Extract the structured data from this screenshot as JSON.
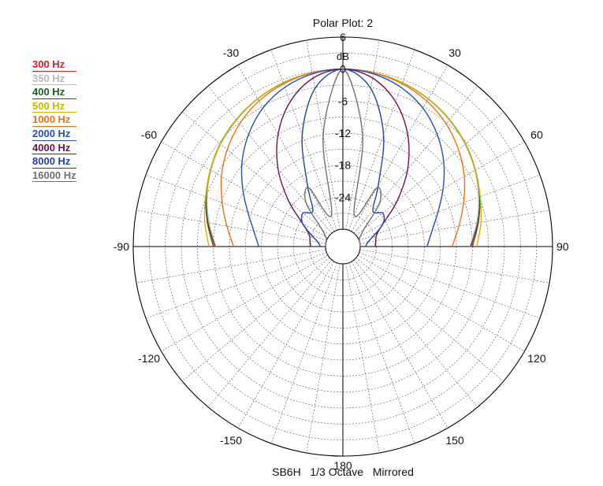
{
  "chart_data": {
    "type": "polar",
    "title": "Polar Plot: 2",
    "footer": "SB6H   1/3 Octave   Mirrored",
    "radial_unit": "dB",
    "radial_range": [
      -30,
      6
    ],
    "radial_ticks": [
      {
        "value": 6,
        "label": "6"
      },
      {
        "value": 0,
        "label": "0"
      },
      {
        "value": -6,
        "label": "-6"
      },
      {
        "value": -12,
        "label": "-12"
      },
      {
        "value": -18,
        "label": "-18"
      },
      {
        "value": -24,
        "label": "-24"
      }
    ],
    "angle_ticks": [
      {
        "value": -30,
        "label": "-30"
      },
      {
        "value": 30,
        "label": "30"
      },
      {
        "value": -60,
        "label": "-60"
      },
      {
        "value": 60,
        "label": "60"
      },
      {
        "value": -90,
        "label": "-90"
      },
      {
        "value": 90,
        "label": "90"
      },
      {
        "value": -120,
        "label": "-120"
      },
      {
        "value": 120,
        "label": "120"
      },
      {
        "value": -150,
        "label": "-150"
      },
      {
        "value": 150,
        "label": "150"
      },
      {
        "value": 180,
        "label": "180"
      }
    ],
    "grid": true,
    "legend_position": "top-left",
    "mirrored": true,
    "angles": [
      0,
      10,
      20,
      30,
      40,
      50,
      60,
      70,
      80,
      90
    ],
    "series": [
      {
        "name": "300 Hz",
        "color": "#d42020",
        "values": [
          0,
          -0.2,
          -0.6,
          -1.3,
          -2.2,
          -3.3,
          -4.6,
          -6.0,
          -7.5,
          -9.0
        ]
      },
      {
        "name": "350 Hz",
        "color": "#b8b8b8",
        "values": [
          0,
          -0.2,
          -0.6,
          -1.3,
          -2.3,
          -3.4,
          -4.7,
          -6.2,
          -7.8,
          -9.5
        ]
      },
      {
        "name": "400 Hz",
        "color": "#1e5e1e",
        "values": [
          0,
          -0.2,
          -0.6,
          -1.3,
          -2.2,
          -3.3,
          -4.6,
          -6.0,
          -7.6,
          -9.3
        ]
      },
      {
        "name": "500 Hz",
        "color": "#c8b800",
        "values": [
          0,
          -0.2,
          -0.6,
          -1.3,
          -2.2,
          -3.3,
          -4.6,
          -5.9,
          -7.0,
          -8.2
        ]
      },
      {
        "name": "1000 Hz",
        "color": "#f07010",
        "values": [
          0,
          -0.2,
          -0.8,
          -1.8,
          -3.2,
          -5.0,
          -7.0,
          -9.2,
          -11.2,
          -12.8
        ]
      },
      {
        "name": "2000 Hz",
        "color": "#2050c0",
        "values": [
          0,
          -0.4,
          -1.5,
          -3.3,
          -5.8,
          -8.6,
          -11.6,
          -14.3,
          -16.3,
          -17.5
        ]
      },
      {
        "name": "4000 Hz",
        "color": "#701050",
        "values": [
          0,
          -1.2,
          -4.4,
          -9.0,
          -14.4,
          -20.0,
          -24.5,
          -26.5,
          -27.0,
          -27.2
        ]
      },
      {
        "name": "8000 Hz",
        "color": "#2040b0",
        "values": [
          0,
          -3.2,
          -11.0,
          -20.0,
          -24.5,
          -23.5,
          -24.5,
          -27.0,
          -28.5,
          -29.0
        ]
      },
      {
        "name": "16000 Hz",
        "color": "#707070",
        "values": [
          0,
          -12.0,
          -27.0,
          -20.5,
          -22.5,
          -28.0,
          -29.5,
          -30.0,
          -30.0,
          -30.0
        ]
      }
    ]
  }
}
